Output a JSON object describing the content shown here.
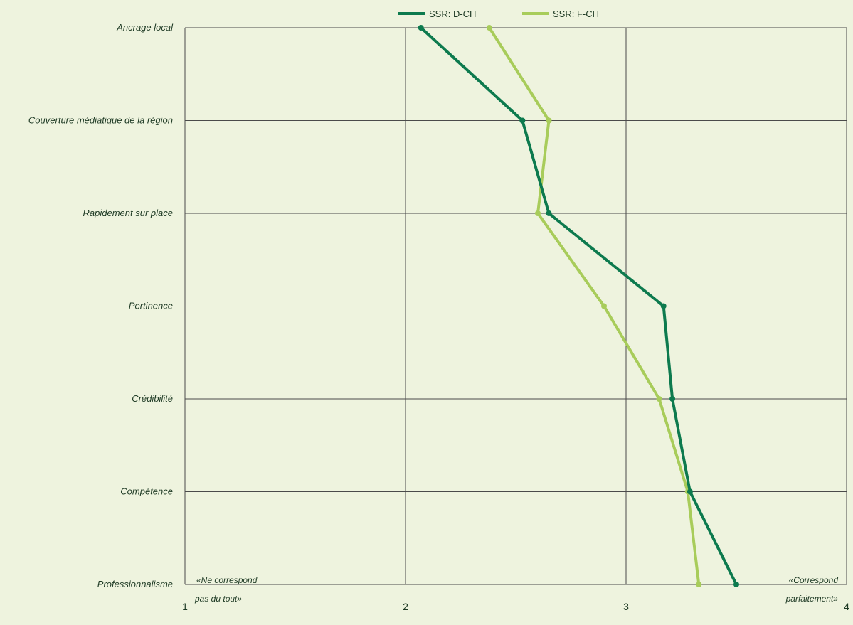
{
  "chart_data": {
    "type": "line",
    "orientation": "horizontal",
    "categories": [
      "Ancrage local",
      "Couverture médiatique de la région",
      "Rapidement sur place",
      "Pertinence",
      "Crédibilité",
      "Compétence",
      "Professionnalisme"
    ],
    "series": [
      {
        "name": "SSR: D-CH",
        "color": "#0d7a4e",
        "values": [
          2.07,
          2.53,
          2.65,
          3.17,
          3.21,
          3.29,
          3.5
        ]
      },
      {
        "name": "SSR: F-CH",
        "color": "#a8cc5a",
        "values": [
          2.38,
          2.65,
          2.6,
          2.9,
          3.15,
          3.28,
          3.33
        ]
      }
    ],
    "xlim": [
      1,
      4
    ],
    "xticks": [
      "1",
      "2",
      "3",
      "4"
    ],
    "anchor_low": [
      "«Ne correspond",
      "pas du tout»"
    ],
    "anchor_high": [
      "«Correspond",
      "parfaitement»"
    ],
    "grid": true,
    "legend_position": "top-center"
  }
}
